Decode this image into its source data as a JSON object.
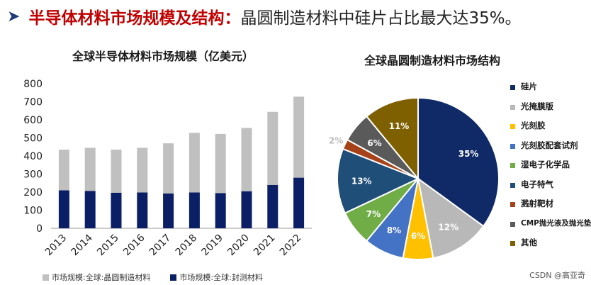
{
  "headline": {
    "arrow": "➤",
    "highlight": "半导体材料市场规模及结构：",
    "text": "晶圆制造材料中硅片占比最大达35%。"
  },
  "watermark": "CSDN @高亚奇",
  "chart_data": [
    {
      "type": "bar",
      "stacked": true,
      "title": "全球半导体材料市场规模（亿美元）",
      "categories": [
        "2013",
        "2014",
        "2015",
        "2016",
        "2017",
        "2018",
        "2019",
        "2020",
        "2021",
        "2022"
      ],
      "series": [
        {
          "name": "市场规模:全球:封测材料",
          "color": "#0b1f66",
          "values": [
            210,
            207,
            197,
            198,
            193,
            198,
            195,
            205,
            240,
            280
          ]
        },
        {
          "name": "市场规模:全球:晶圆制造材料",
          "color": "#c0c0c0",
          "values": [
            225,
            238,
            238,
            247,
            277,
            330,
            327,
            350,
            404,
            448
          ]
        }
      ],
      "ylim": [
        0,
        800
      ],
      "yticks": [
        0,
        100,
        200,
        300,
        400,
        500,
        600,
        700,
        800
      ],
      "legend_position": "bottom",
      "grid": false
    },
    {
      "type": "pie",
      "title": "全球晶圆制造材料市场结构",
      "slices": [
        {
          "label": "硅片",
          "value": 35,
          "display": "35%",
          "color": "#0f2a66"
        },
        {
          "label": "光掩膜版",
          "value": 12,
          "display": "12%",
          "color": "#b8b8b8"
        },
        {
          "label": "光刻胶",
          "value": 6,
          "display": "6%",
          "color": "#ffc000"
        },
        {
          "label": "光刻胶配套试剂",
          "value": 8,
          "display": "8%",
          "color": "#4472c4"
        },
        {
          "label": "湿电子化学品",
          "value": 7,
          "display": "7%",
          "color": "#70ad47"
        },
        {
          "label": "电子特气",
          "value": 13,
          "display": "13%",
          "color": "#1f4e79"
        },
        {
          "label": "溅射靶材",
          "value": 2,
          "display": "2%",
          "color": "#a5421a"
        },
        {
          "label": "CMP抛光液及抛光垫",
          "value": 6,
          "display": "6%",
          "color": "#5a5a5a"
        },
        {
          "label": "其他",
          "value": 11,
          "display": "11%",
          "color": "#7f6000"
        }
      ],
      "legend_position": "right"
    }
  ]
}
